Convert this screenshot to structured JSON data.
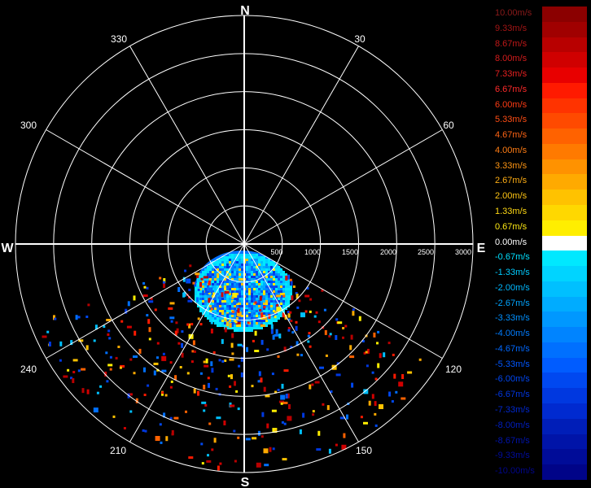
{
  "compass": {
    "north": "N",
    "south": "S",
    "east": "E",
    "west": "W"
  },
  "bearings": [
    "30",
    "60",
    "120",
    "150",
    "210",
    "240",
    "300",
    "330"
  ],
  "range_labels": [
    "500",
    "1000",
    "1500",
    "2000",
    "2500",
    "3000"
  ],
  "legend": {
    "entries": [
      {
        "label": "10.00m/s",
        "text_color": "#8b1a1a",
        "swatch": "#8b0000"
      },
      {
        "label": "9.33m/s",
        "text_color": "#a31515",
        "swatch": "#a00000"
      },
      {
        "label": "8.67m/s",
        "text_color": "#c01818",
        "swatch": "#b80000"
      },
      {
        "label": "8.00m/s",
        "text_color": "#d41c1c",
        "swatch": "#d00000"
      },
      {
        "label": "7.33m/s",
        "text_color": "#e82020",
        "swatch": "#e80000"
      },
      {
        "label": "6.67m/s",
        "text_color": "#ff2a2a",
        "swatch": "#ff1a00"
      },
      {
        "label": "6.00m/s",
        "text_color": "#ff3b14",
        "swatch": "#ff3300"
      },
      {
        "label": "5.33m/s",
        "text_color": "#ff4d14",
        "swatch": "#ff4a00"
      },
      {
        "label": "4.67m/s",
        "text_color": "#ff6414",
        "swatch": "#ff6200"
      },
      {
        "label": "4.00m/s",
        "text_color": "#ff7d14",
        "swatch": "#ff7a00"
      },
      {
        "label": "3.33m/s",
        "text_color": "#ff9614",
        "swatch": "#ff9200"
      },
      {
        "label": "2.67m/s",
        "text_color": "#ffae14",
        "swatch": "#ffaa00"
      },
      {
        "label": "2.00m/s",
        "text_color": "#ffc514",
        "swatch": "#ffc200"
      },
      {
        "label": "1.33m/s",
        "text_color": "#ffd814",
        "swatch": "#ffd800"
      },
      {
        "label": "0.67m/s",
        "text_color": "#ffea14",
        "swatch": "#ffee00"
      },
      {
        "label": "0.00m/s",
        "text_color": "#ffffff",
        "swatch": "#ffffff"
      },
      {
        "label": "-0.67m/s",
        "text_color": "#00e0ff",
        "swatch": "#00e8ff"
      },
      {
        "label": "-1.33m/s",
        "text_color": "#00ccff",
        "swatch": "#00d4ff"
      },
      {
        "label": "-2.00m/s",
        "text_color": "#00b8ff",
        "swatch": "#00c0ff"
      },
      {
        "label": "-2.67m/s",
        "text_color": "#00a4ff",
        "swatch": "#00acff"
      },
      {
        "label": "-3.33m/s",
        "text_color": "#0090ff",
        "swatch": "#0098ff"
      },
      {
        "label": "-4.00m/s",
        "text_color": "#007cff",
        "swatch": "#0084ff"
      },
      {
        "label": "-4.67m/s",
        "text_color": "#0068ff",
        "swatch": "#0070ff"
      },
      {
        "label": "-5.33m/s",
        "text_color": "#0056ff",
        "swatch": "#005cff"
      },
      {
        "label": "-6.00m/s",
        "text_color": "#0046f0",
        "swatch": "#0048f0"
      },
      {
        "label": "-6.67m/s",
        "text_color": "#0036e0",
        "swatch": "#0038e0"
      },
      {
        "label": "-7.33m/s",
        "text_color": "#0028d0",
        "swatch": "#002ad0"
      },
      {
        "label": "-8.00m/s",
        "text_color": "#001ec0",
        "swatch": "#001eb8"
      },
      {
        "label": "-8.67m/s",
        "text_color": "#0014ae",
        "swatch": "#0014a8"
      },
      {
        "label": "-9.33m/s",
        "text_color": "#000c9c",
        "swatch": "#000c98"
      },
      {
        "label": "-10.00m/s",
        "text_color": "#00068a",
        "swatch": "#000488"
      }
    ]
  },
  "colors": {
    "background": "#000000",
    "grid": "#ffffff"
  }
}
